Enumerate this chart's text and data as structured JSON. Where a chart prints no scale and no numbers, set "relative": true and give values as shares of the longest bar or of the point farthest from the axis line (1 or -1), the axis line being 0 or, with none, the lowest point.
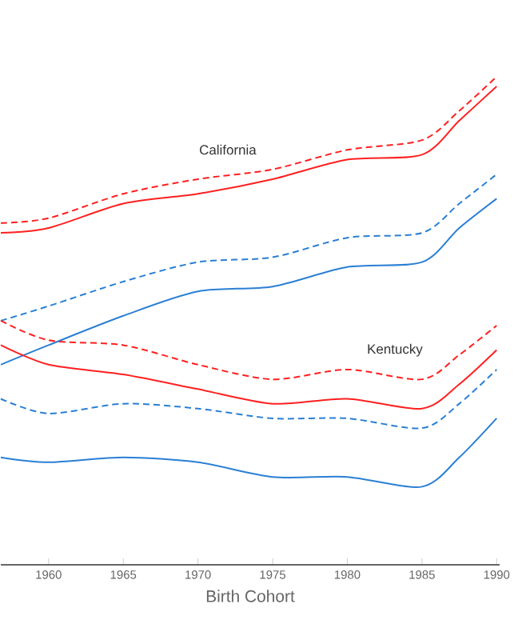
{
  "chart_data": {
    "type": "line",
    "relative": true,
    "xlabel": "Birth Cohort",
    "x": [
      1956.8,
      1960,
      1965,
      1970,
      1975,
      1980,
      1985,
      1987.5,
      1990
    ],
    "xlim": [
      1956.8,
      1990.2
    ],
    "xticks": [
      1960,
      1965,
      1970,
      1975,
      1980,
      1985,
      1990
    ],
    "series": [
      {
        "color": "#ff2020",
        "line_style": "dashed",
        "values": [
          0.7,
          0.71,
          0.76,
          0.79,
          0.81,
          0.85,
          0.87,
          0.93,
          1.0
        ]
      },
      {
        "color": "#ff2020",
        "line_style": "solid",
        "values": [
          0.68,
          0.69,
          0.74,
          0.76,
          0.79,
          0.83,
          0.84,
          0.91,
          0.98
        ]
      },
      {
        "color": "#2a7fd4",
        "line_style": "dashed",
        "values": [
          0.5,
          0.53,
          0.58,
          0.62,
          0.63,
          0.67,
          0.68,
          0.74,
          0.8
        ]
      },
      {
        "color": "#2a7fd4",
        "line_style": "solid",
        "values": [
          0.41,
          0.45,
          0.51,
          0.56,
          0.57,
          0.61,
          0.62,
          0.69,
          0.75
        ]
      },
      {
        "color": "#ff2020",
        "line_style": "dashed",
        "values": [
          0.5,
          0.46,
          0.45,
          0.41,
          0.38,
          0.4,
          0.38,
          0.43,
          0.49
        ]
      },
      {
        "color": "#ff2020",
        "line_style": "solid",
        "values": [
          0.45,
          0.41,
          0.39,
          0.36,
          0.33,
          0.34,
          0.32,
          0.37,
          0.44
        ]
      },
      {
        "color": "#2a7fd4",
        "line_style": "dashed",
        "values": [
          0.34,
          0.31,
          0.33,
          0.32,
          0.3,
          0.3,
          0.28,
          0.33,
          0.4
        ]
      },
      {
        "color": "#2a7fd4",
        "line_style": "solid",
        "values": [
          0.22,
          0.21,
          0.22,
          0.21,
          0.18,
          0.18,
          0.16,
          0.22,
          0.3
        ]
      }
    ],
    "annotations": [
      "California",
      "Kentucky"
    ]
  }
}
